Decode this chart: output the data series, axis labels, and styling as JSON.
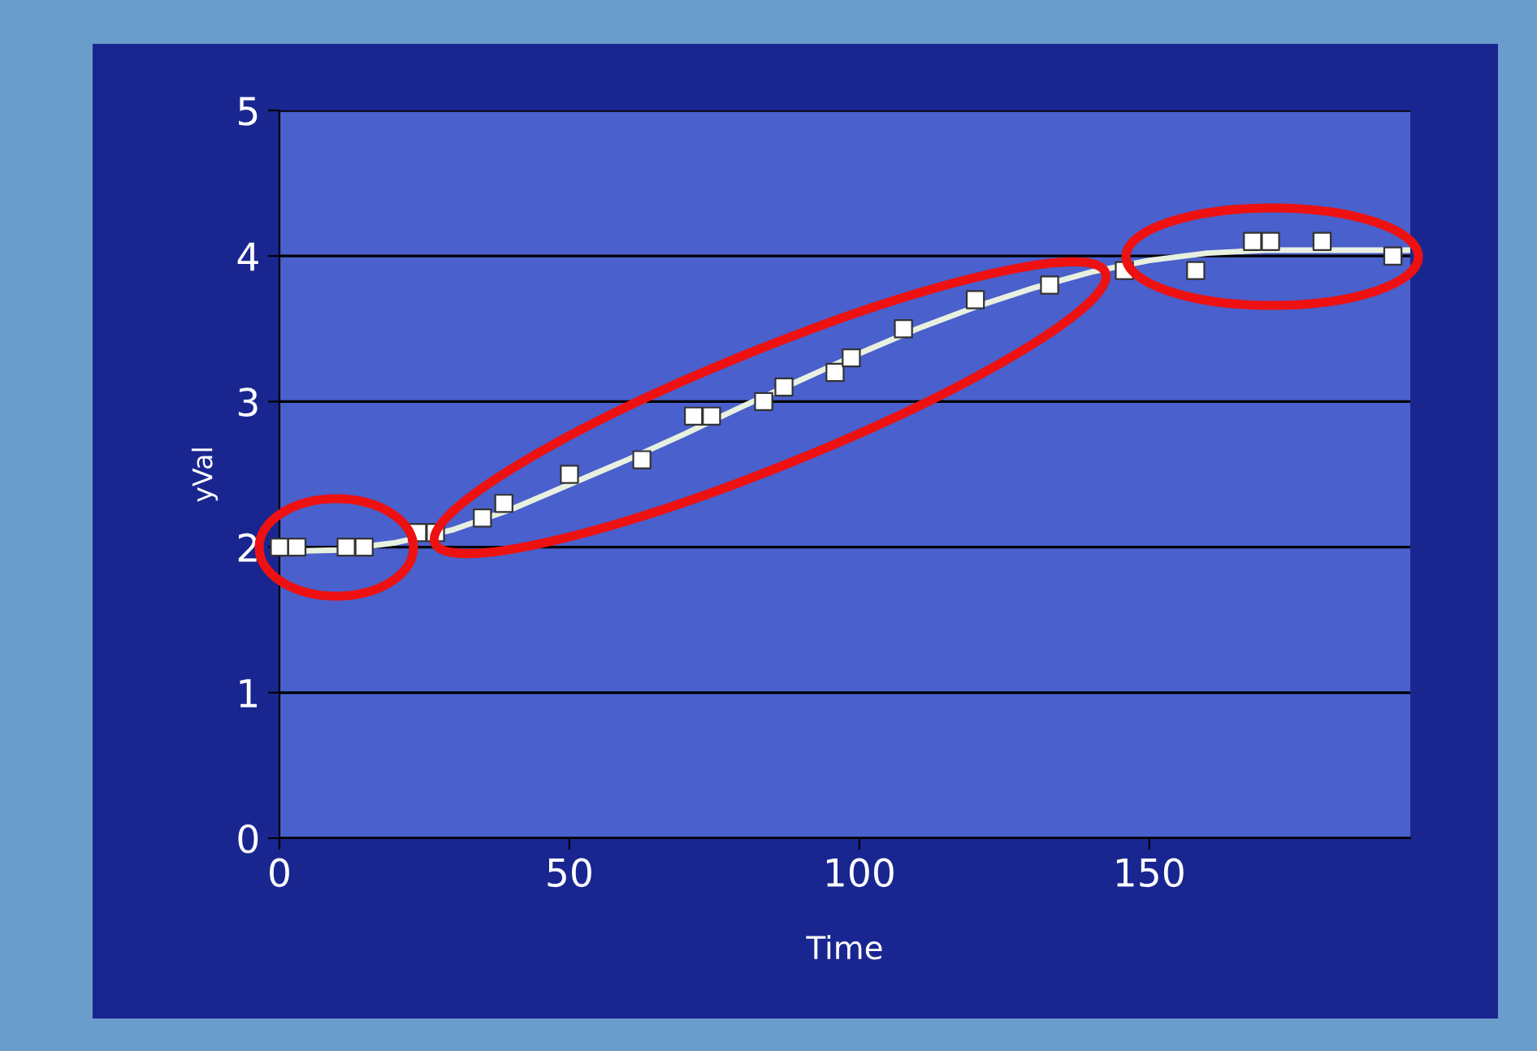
{
  "chart_data": {
    "type": "scatter",
    "xlabel": "Time",
    "ylabel": "yVal",
    "xlim": [
      0,
      195
    ],
    "ylim": [
      0,
      5
    ],
    "xticks": [
      0,
      50,
      100,
      150
    ],
    "yticks": [
      0,
      1,
      2,
      3,
      4,
      5
    ],
    "grid": "y",
    "marker": "square",
    "series": [
      {
        "type": "line",
        "color": "#e8f0e0",
        "line_style": "solid",
        "marker": "none",
        "x": [
          0,
          10,
          20,
          30,
          40,
          50,
          60,
          70,
          80,
          90,
          100,
          110,
          120,
          130,
          140,
          150,
          160,
          170,
          180,
          195
        ],
        "values": [
          1.97,
          1.98,
          2.03,
          2.12,
          2.26,
          2.43,
          2.6,
          2.78,
          2.97,
          3.15,
          3.33,
          3.5,
          3.65,
          3.78,
          3.89,
          3.97,
          4.02,
          4.04,
          4.04,
          4.04
        ]
      },
      {
        "color": "#ffffff",
        "x": [
          0,
          3,
          11.5,
          14.6,
          23.8,
          26.9,
          35,
          38.7,
          50,
          62.5,
          71.4,
          74.5,
          83.5,
          87,
          95.8,
          98.6,
          107.6,
          120,
          132.8,
          145.7,
          158,
          167.8,
          170.9,
          179.8,
          192
        ],
        "values": [
          2.0,
          2.0,
          2.0,
          2.0,
          2.1,
          2.1,
          2.2,
          2.3,
          2.5,
          2.6,
          2.9,
          2.9,
          3.0,
          3.1,
          3.2,
          3.3,
          3.5,
          3.7,
          3.8,
          3.9,
          3.9,
          4.1,
          4.1,
          4.1,
          4.0
        ]
      }
    ]
  }
}
